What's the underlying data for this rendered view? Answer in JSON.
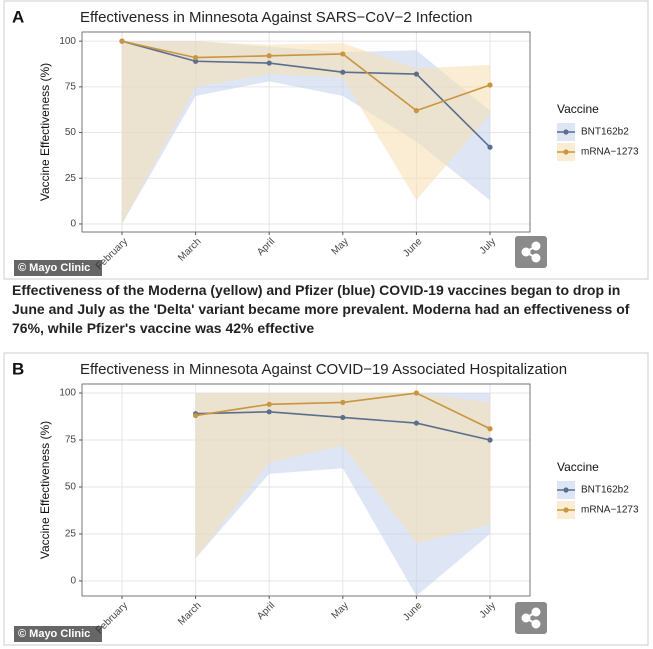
{
  "chart_data": [
    {
      "type": "line",
      "panel": "A",
      "title": "Effectiveness in Minnesota Against SARS−CoV−2 Infection",
      "credit": "© Mayo Clinic",
      "y_label": "Vaccine Effectiveness (%)",
      "legend_title": "Vaccine",
      "legend_position": "right",
      "grid": true,
      "categories": [
        "February",
        "March",
        "April",
        "May",
        "June",
        "July"
      ],
      "ylim": [
        -4.4,
        105
      ],
      "yticks": [
        0,
        25,
        50,
        75,
        100
      ],
      "series": [
        {
          "name": "BNT162b2",
          "color": "#5a6f8f",
          "band_color": "#c3d2ee",
          "values": [
            100,
            89,
            88,
            83,
            82,
            42
          ],
          "lower": [
            0,
            70,
            78,
            70,
            45,
            13
          ],
          "upper": [
            100,
            100,
            97,
            94,
            95,
            62
          ]
        },
        {
          "name": "mRNA−1273",
          "color": "#c9953f",
          "band_color": "#f6dfae",
          "values": [
            100,
            91,
            92,
            93,
            62,
            76
          ],
          "lower": [
            0,
            75,
            82,
            80,
            13,
            60
          ],
          "upper": [
            100,
            100,
            98,
            99,
            85,
            87
          ]
        }
      ]
    },
    {
      "type": "line",
      "panel": "B",
      "title": "Effectiveness in Minnesota Against COVID−19 Associated Hospitalization",
      "credit": "© Mayo Clinic",
      "y_label": "Vaccine Effectiveness (%)",
      "legend_title": "Vaccine",
      "legend_position": "right",
      "grid": true,
      "categories": [
        "February",
        "March",
        "April",
        "May",
        "June",
        "July"
      ],
      "ylim": [
        -8,
        104.8
      ],
      "yticks": [
        0,
        25,
        50,
        75,
        100
      ],
      "series": [
        {
          "name": "BNT162b2",
          "color": "#5a6f8f",
          "band_color": "#c3d2ee",
          "values": [
            null,
            89,
            90,
            87,
            84,
            75
          ],
          "lower": [
            null,
            12,
            57,
            60,
            -8,
            25
          ],
          "upper": [
            null,
            100,
            100,
            100,
            100,
            100
          ]
        },
        {
          "name": "mRNA−1273",
          "color": "#c9953f",
          "band_color": "#f6dfae",
          "values": [
            null,
            88,
            94,
            95,
            100,
            81
          ],
          "lower": [
            null,
            12,
            63,
            72,
            20,
            30
          ],
          "upper": [
            null,
            100,
            100,
            100,
            100,
            95
          ]
        }
      ]
    }
  ],
  "caption": "Effectiveness of the Moderna (yellow) and Pfizer (blue) COVID-19 vaccines began to drop in June and July as the 'Delta' variant became more prevalent. Moderna had an effectiveness of 76%, while Pfizer's vaccine was 42% effective"
}
